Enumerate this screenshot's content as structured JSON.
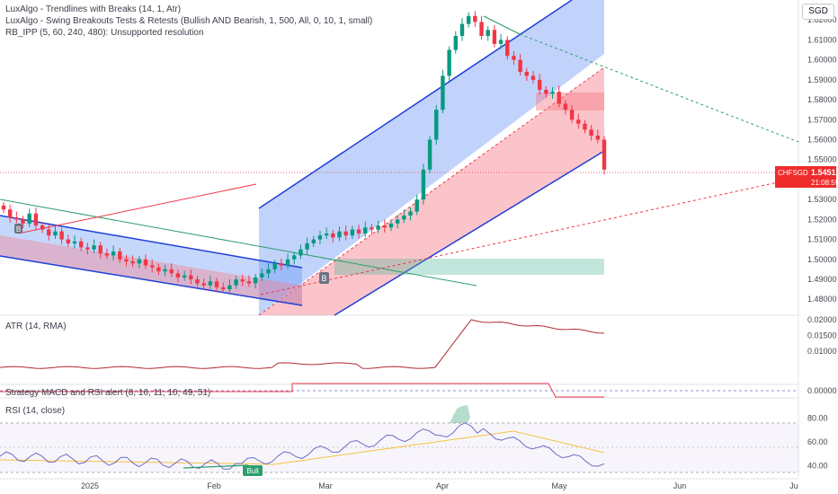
{
  "currency": "SGD",
  "symbol": "CHFSGD",
  "indicators": [
    "LuxAlgo - Trendlines with Breaks (14, 1, Atr)",
    "LuxAlgo - Swing Breakouts Tests & Retests (Bullish AND Bearish, 1, 500, All, 0, 10, 1, small)",
    "RB_IPP (5, 60, 240, 480): Unsupported resolution"
  ],
  "panes": {
    "atr": "ATR (14, RMA)",
    "strategy": "Strategy MACD and RSI alert (8, 16, 11, 10, 49, 51)",
    "rsi": "RSI (14, close)"
  },
  "price_tag": {
    "value": "1.54512",
    "countdown": "21:08:59"
  },
  "markers": {
    "breakout": "B",
    "rsi_bull": "Bull"
  },
  "price_axis": [
    "1.62000",
    "1.61000",
    "1.60000",
    "1.59000",
    "1.58000",
    "1.57000",
    "1.56000",
    "1.55000",
    "1.53000",
    "1.52000",
    "1.51000",
    "1.50000",
    "1.49000",
    "1.48000"
  ],
  "atr_axis": [
    "0.02000",
    "0.01500",
    "0.01000"
  ],
  "strategy_axis": [
    "0.00000"
  ],
  "rsi_axis": [
    "80.00",
    "60.00",
    "40.00"
  ],
  "date_axis": [
    "2025",
    "Feb",
    "Mar",
    "Apr",
    "May",
    "Jun",
    "Jul"
  ],
  "chart_data": {
    "type": "candlestick",
    "last_price": 1.54512,
    "price_range": [
      1.472,
      1.63
    ],
    "atr_range": [
      0.0,
      0.0205
    ],
    "rsi_range": [
      30,
      90
    ],
    "colors": {
      "up": "#089981",
      "down": "#f23645",
      "channel_upper_fill": "#5b8cf5",
      "channel_lower_fill": "#f77c8a",
      "channel_line": "#1f3fd6",
      "atr_line": "#b22833",
      "rsi_line": "#6b6bc4",
      "rsi_ma": "#f5c242"
    },
    "date_labels": [
      "2025",
      "Feb",
      "Mar",
      "Apr",
      "May",
      "Jun",
      "Jul"
    ],
    "approx_close_series": [
      1.525,
      1.521,
      1.52,
      1.518,
      1.523,
      1.517,
      1.515,
      1.512,
      1.514,
      1.51,
      1.508,
      1.509,
      1.506,
      1.505,
      1.507,
      1.503,
      1.502,
      1.504,
      1.5,
      1.499,
      1.498,
      1.5,
      1.497,
      1.496,
      1.494,
      1.495,
      1.493,
      1.491,
      1.492,
      1.49,
      1.488,
      1.487,
      1.489,
      1.486,
      1.485,
      1.487,
      1.49,
      1.489,
      1.488,
      1.491,
      1.493,
      1.495,
      1.498,
      1.497,
      1.5,
      1.502,
      1.505,
      1.508,
      1.51,
      1.512,
      1.513,
      1.511,
      1.514,
      1.512,
      1.515,
      1.513,
      1.516,
      1.515,
      1.517,
      1.516,
      1.518,
      1.52,
      1.522,
      1.524,
      1.53,
      1.545,
      1.56,
      1.575,
      1.592,
      1.605,
      1.612,
      1.618,
      1.622,
      1.619,
      1.612,
      1.615,
      1.608,
      1.61,
      1.602,
      1.6,
      1.594,
      1.592,
      1.59,
      1.585,
      1.583,
      1.584,
      1.578,
      1.575,
      1.57,
      1.568,
      1.565,
      1.562,
      1.56,
      1.545
    ]
  }
}
